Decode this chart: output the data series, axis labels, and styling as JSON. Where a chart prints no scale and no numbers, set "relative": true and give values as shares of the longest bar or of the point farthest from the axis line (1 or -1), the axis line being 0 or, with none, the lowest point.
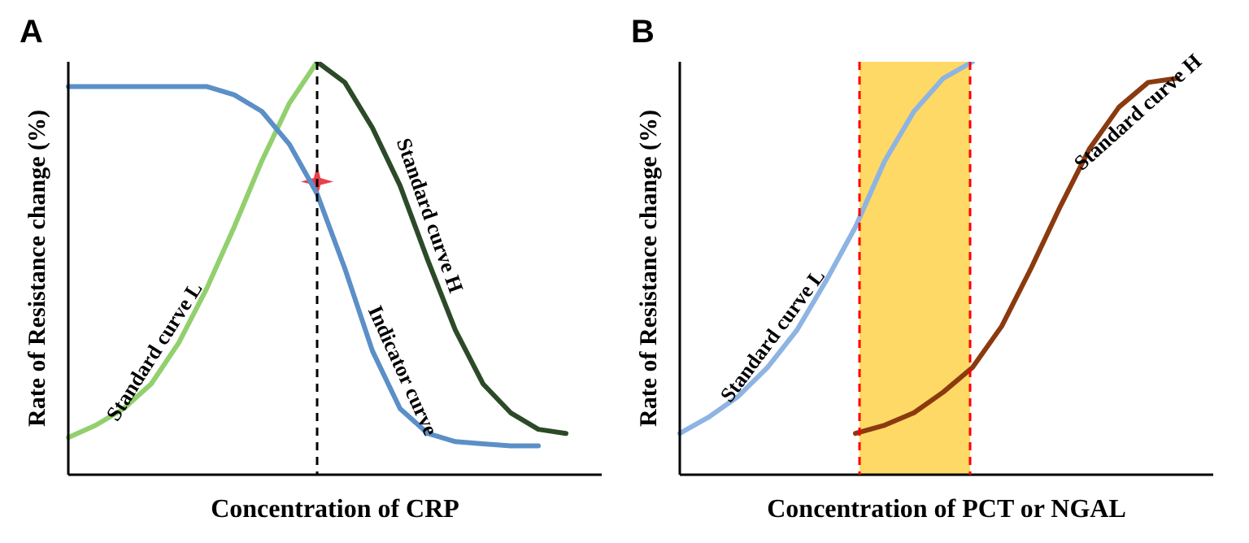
{
  "chart_data": [
    {
      "type": "line",
      "title": "A",
      "xlabel": "Concentration of CRP",
      "ylabel": "Rate of Resistance change (%)",
      "relative": true,
      "marker": "none",
      "line_style": "solid",
      "categories": [
        null,
        null,
        null,
        null,
        null,
        null,
        null,
        null,
        null,
        null,
        null,
        null,
        null,
        null,
        null,
        null,
        null,
        null,
        null
      ],
      "series": [
        {
          "name": "Standard curve L",
          "color": "#92d06e",
          "values": [
            0.09,
            0.12,
            0.16,
            0.22,
            0.32,
            0.45,
            0.6,
            0.76,
            0.9,
            1.0,
            null,
            null,
            null,
            null,
            null,
            null,
            null,
            null,
            null
          ]
        },
        {
          "name": "Standard curve H",
          "color": "#2c4a28",
          "values": [
            null,
            null,
            null,
            null,
            null,
            null,
            null,
            null,
            null,
            1.0,
            0.95,
            0.84,
            0.7,
            0.52,
            0.35,
            0.22,
            0.15,
            0.11,
            0.1
          ]
        },
        {
          "name": "Indicator curve",
          "color": "#5b8fc7",
          "values": [
            0.94,
            0.94,
            0.94,
            0.94,
            0.94,
            0.94,
            0.92,
            0.88,
            0.8,
            0.68,
            0.5,
            0.3,
            0.16,
            0.1,
            0.08,
            0.075,
            0.07,
            0.07,
            null
          ]
        }
      ]
    },
    {
      "type": "line",
      "title": "B",
      "xlabel": "Concentration of PCT or NGAL",
      "ylabel": "Rate of Resistance change (%)",
      "relative": true,
      "marker": "none",
      "line_style": "solid",
      "categories": [
        null,
        null,
        null,
        null,
        null,
        null,
        null,
        null,
        null,
        null,
        null,
        null,
        null,
        null,
        null,
        null,
        null,
        null
      ],
      "series": [
        {
          "name": "Standard curve L",
          "color": "#8db4e2",
          "values": [
            0.1,
            0.14,
            0.19,
            0.26,
            0.35,
            0.47,
            0.6,
            0.76,
            0.88,
            0.96,
            1.0,
            null,
            null,
            null,
            null,
            null,
            null,
            null
          ]
        },
        {
          "name": "Standard curve H",
          "color": "#8b3a0f",
          "values": [
            null,
            null,
            null,
            null,
            null,
            null,
            0.1,
            0.12,
            0.15,
            0.2,
            0.26,
            0.36,
            0.5,
            0.65,
            0.79,
            0.89,
            0.95,
            0.96
          ]
        }
      ]
    }
  ]
}
